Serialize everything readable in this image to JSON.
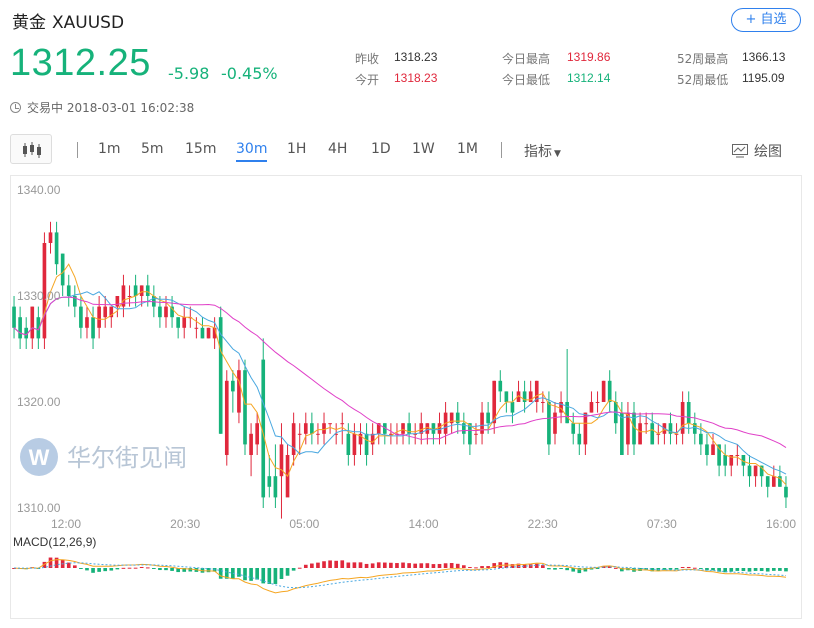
{
  "header": {
    "name": "黄金",
    "symbol": "XAUUSD",
    "fav_label": "+ 自选"
  },
  "quote": {
    "price": "1312.25",
    "change": "-5.98",
    "change_pct": "-0.45%"
  },
  "stats": {
    "prev_close_label": "昨收",
    "prev_close": "1318.23",
    "open_label": "今开",
    "open": "1318.23",
    "high_label": "今日最高",
    "high": "1319.86",
    "low_label": "今日最低",
    "low": "1312.14",
    "w52_high_label": "52周最高",
    "w52_high": "1366.13",
    "w52_low_label": "52周最低",
    "w52_low": "1195.09"
  },
  "status": {
    "text": "交易中 2018-03-01 16:02:38"
  },
  "toolbar": {
    "periods": [
      "1m",
      "5m",
      "15m",
      "30m",
      "1H",
      "4H",
      "1D",
      "1W",
      "1M"
    ],
    "active": "30m",
    "indicator_label": "指标",
    "draw_label": "绘图"
  },
  "watermark": "华尔街见闻",
  "colors": {
    "up": "#e0283c",
    "down": "#16b27a",
    "ma_fast": "#f5a623",
    "ma_mid": "#4aa8e0",
    "ma_slow": "#e040c8"
  },
  "chart_data": {
    "type": "candlestick",
    "y_ticks": [
      "1340.00",
      "1330.00",
      "1320.00",
      "1310.00"
    ],
    "ylim": [
      1310,
      1340
    ],
    "x_ticks": [
      "12:00",
      "20:30",
      "05:00",
      "14:00",
      "22:30",
      "07:30",
      "16:00"
    ],
    "candles": [
      [
        1329,
        1327,
        1330,
        1326
      ],
      [
        1328,
        1326,
        1329,
        1325
      ],
      [
        1327,
        1326,
        1328,
        1325
      ],
      [
        1326,
        1329,
        1329,
        1325
      ],
      [
        1328,
        1326,
        1329,
        1325
      ],
      [
        1326,
        1335,
        1336,
        1325
      ],
      [
        1335,
        1336,
        1337,
        1334
      ],
      [
        1336,
        1333,
        1337,
        1332
      ],
      [
        1334,
        1331,
        1334,
        1330
      ],
      [
        1331,
        1330,
        1332,
        1329
      ],
      [
        1330,
        1329,
        1331,
        1328
      ],
      [
        1329,
        1327,
        1330,
        1326
      ],
      [
        1327,
        1328,
        1329,
        1326
      ],
      [
        1328,
        1326,
        1329,
        1325
      ],
      [
        1327,
        1329,
        1330,
        1326
      ],
      [
        1328,
        1329,
        1330,
        1327
      ],
      [
        1328,
        1329,
        1329,
        1327
      ],
      [
        1329,
        1330,
        1330,
        1328
      ],
      [
        1329,
        1331,
        1332,
        1328
      ],
      [
        1330,
        1330,
        1331,
        1329
      ],
      [
        1331,
        1330,
        1332,
        1329
      ],
      [
        1330,
        1331,
        1331,
        1329
      ],
      [
        1331,
        1330,
        1332,
        1329
      ],
      [
        1330,
        1329,
        1331,
        1328
      ],
      [
        1329,
        1328,
        1330,
        1327
      ],
      [
        1328,
        1329,
        1330,
        1327
      ],
      [
        1329,
        1328,
        1330,
        1327
      ],
      [
        1328,
        1327,
        1328,
        1326
      ],
      [
        1327,
        1328,
        1329,
        1326
      ],
      [
        1328,
        1328,
        1329,
        1327
      ],
      [
        1327,
        1327,
        1328,
        1326
      ],
      [
        1327,
        1326,
        1328,
        1326
      ],
      [
        1326,
        1327,
        1327,
        1326
      ],
      [
        1326,
        1327,
        1328,
        1325
      ],
      [
        1328,
        1317,
        1329,
        1317
      ],
      [
        1315,
        1322,
        1323,
        1314
      ],
      [
        1322,
        1321,
        1323,
        1319
      ],
      [
        1319,
        1323,
        1324,
        1318
      ],
      [
        1323,
        1316,
        1324,
        1315
      ],
      [
        1315,
        1317,
        1318,
        1313
      ],
      [
        1316,
        1318,
        1319,
        1315
      ],
      [
        1324,
        1311,
        1326,
        1310
      ],
      [
        1313,
        1312,
        1315,
        1311
      ],
      [
        1313,
        1311,
        1316,
        1310
      ],
      [
        1313,
        1316,
        1318,
        1309
      ],
      [
        1311,
        1315,
        1316,
        1312
      ],
      [
        1315,
        1318,
        1319,
        1314
      ],
      [
        1317,
        1317,
        1318,
        1315
      ],
      [
        1317,
        1318,
        1319,
        1316
      ],
      [
        1318,
        1317,
        1319,
        1316
      ],
      [
        1317,
        1317,
        1318,
        1316
      ],
      [
        1317,
        1318,
        1319,
        1316
      ],
      [
        1318,
        1318,
        1318,
        1317
      ],
      [
        1317,
        1317,
        1318,
        1316
      ],
      [
        1318,
        1318,
        1319,
        1316
      ],
      [
        1317,
        1315,
        1318,
        1314
      ],
      [
        1315,
        1317,
        1318,
        1314
      ],
      [
        1316,
        1317,
        1318,
        1315
      ],
      [
        1317,
        1315,
        1318,
        1314
      ],
      [
        1316,
        1317,
        1318,
        1315
      ],
      [
        1317,
        1318,
        1318,
        1316
      ],
      [
        1318,
        1317,
        1318,
        1316
      ],
      [
        1317,
        1317,
        1318,
        1316
      ],
      [
        1317,
        1317,
        1318,
        1316
      ],
      [
        1317,
        1318,
        1318,
        1316
      ],
      [
        1318,
        1317,
        1319,
        1316
      ],
      [
        1317,
        1317,
        1318,
        1316
      ],
      [
        1317,
        1318,
        1319,
        1316
      ],
      [
        1317,
        1318,
        1318,
        1316
      ],
      [
        1318,
        1317,
        1318,
        1316
      ],
      [
        1317,
        1318,
        1319,
        1316
      ],
      [
        1317,
        1319,
        1320,
        1316
      ],
      [
        1318,
        1319,
        1319,
        1317
      ],
      [
        1319,
        1318,
        1320,
        1317
      ],
      [
        1318,
        1317,
        1319,
        1316
      ],
      [
        1318,
        1316,
        1318,
        1315
      ],
      [
        1317,
        1317,
        1318,
        1316
      ],
      [
        1317,
        1319,
        1320,
        1316
      ],
      [
        1319,
        1318,
        1320,
        1317
      ],
      [
        1318,
        1322,
        1322,
        1317
      ],
      [
        1322,
        1321,
        1323,
        1320
      ],
      [
        1321,
        1320,
        1321,
        1319
      ],
      [
        1320,
        1319,
        1321,
        1318
      ],
      [
        1320,
        1321,
        1322,
        1320
      ],
      [
        1321,
        1320,
        1322,
        1319
      ],
      [
        1320,
        1321,
        1322,
        1320
      ],
      [
        1320,
        1322,
        1322,
        1319
      ],
      [
        1320,
        1320,
        1321,
        1319
      ],
      [
        1320,
        1316,
        1321,
        1315
      ],
      [
        1317,
        1319,
        1320,
        1316
      ],
      [
        1319,
        1320,
        1321,
        1318
      ],
      [
        1320,
        1318,
        1325,
        1318
      ],
      [
        1318,
        1317,
        1319,
        1316
      ],
      [
        1317,
        1316,
        1318,
        1315
      ],
      [
        1316,
        1319,
        1319,
        1315
      ],
      [
        1319,
        1320,
        1321,
        1319
      ],
      [
        1320,
        1320,
        1321,
        1319
      ],
      [
        1320,
        1322,
        1322,
        1320
      ],
      [
        1322,
        1320,
        1323,
        1319
      ],
      [
        1320,
        1318,
        1321,
        1317
      ],
      [
        1319,
        1315,
        1320,
        1315
      ],
      [
        1316,
        1319,
        1320,
        1315
      ],
      [
        1319,
        1316,
        1320,
        1315
      ],
      [
        1316,
        1318,
        1319,
        1316
      ],
      [
        1318,
        1318,
        1319,
        1317
      ],
      [
        1318,
        1316,
        1319,
        1316
      ],
      [
        1317,
        1317,
        1318,
        1316
      ],
      [
        1317,
        1318,
        1318,
        1316
      ],
      [
        1318,
        1317,
        1319,
        1316
      ],
      [
        1317,
        1317,
        1318,
        1316
      ],
      [
        1317,
        1320,
        1321,
        1316
      ],
      [
        1320,
        1318,
        1321,
        1317
      ],
      [
        1318,
        1317,
        1319,
        1316
      ],
      [
        1317,
        1316,
        1318,
        1315
      ],
      [
        1316,
        1315,
        1317,
        1314
      ],
      [
        1315,
        1316,
        1317,
        1315
      ],
      [
        1316,
        1314,
        1316,
        1313
      ],
      [
        1315,
        1314,
        1316,
        1313
      ],
      [
        1314,
        1315,
        1315,
        1313
      ],
      [
        1315,
        1315,
        1316,
        1314
      ],
      [
        1315,
        1314,
        1315,
        1313
      ],
      [
        1314,
        1313,
        1315,
        1312
      ],
      [
        1313,
        1314,
        1314,
        1312
      ],
      [
        1314,
        1313,
        1314,
        1312
      ],
      [
        1313,
        1312,
        1313,
        1311
      ],
      [
        1312,
        1313,
        1314,
        1312
      ],
      [
        1313,
        1312,
        1314,
        1312
      ],
      [
        1312,
        1311,
        1313,
        1310
      ]
    ],
    "ma": {
      "fast": 5,
      "mid": 10,
      "slow": 30
    },
    "macd_label": "MACD(12,26,9)"
  }
}
